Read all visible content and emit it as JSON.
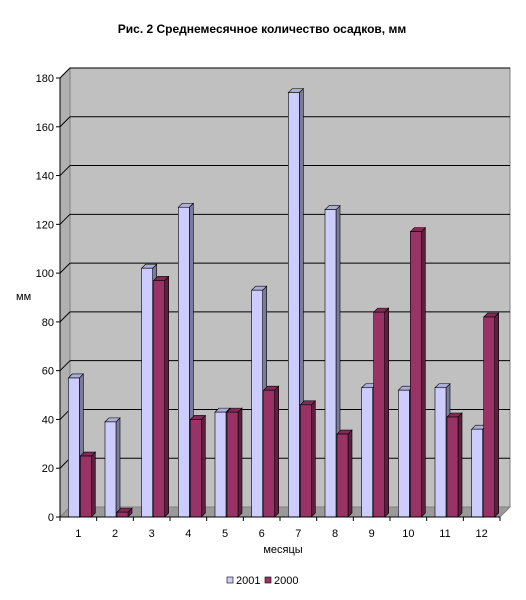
{
  "chart_data": {
    "type": "bar",
    "title": "Рис. 2 Среднемесячное количество осадков, мм",
    "xlabel": "месяцы",
    "ylabel": "мм",
    "categories": [
      "1",
      "2",
      "3",
      "4",
      "5",
      "6",
      "7",
      "8",
      "9",
      "10",
      "11",
      "12"
    ],
    "ylim": [
      0,
      180
    ],
    "yticks": [
      0,
      20,
      40,
      60,
      80,
      100,
      120,
      140,
      160,
      180
    ],
    "grid": true,
    "legend_position": "bottom",
    "series": [
      {
        "name": "2001",
        "color": "#ccccff",
        "values": [
          57,
          39,
          102,
          127,
          43,
          93,
          174,
          126,
          53,
          52,
          53,
          36
        ]
      },
      {
        "name": "2000",
        "color": "#993366",
        "values": [
          25,
          2,
          97,
          40,
          43,
          52,
          46,
          34,
          84,
          117,
          41,
          82
        ]
      }
    ]
  }
}
